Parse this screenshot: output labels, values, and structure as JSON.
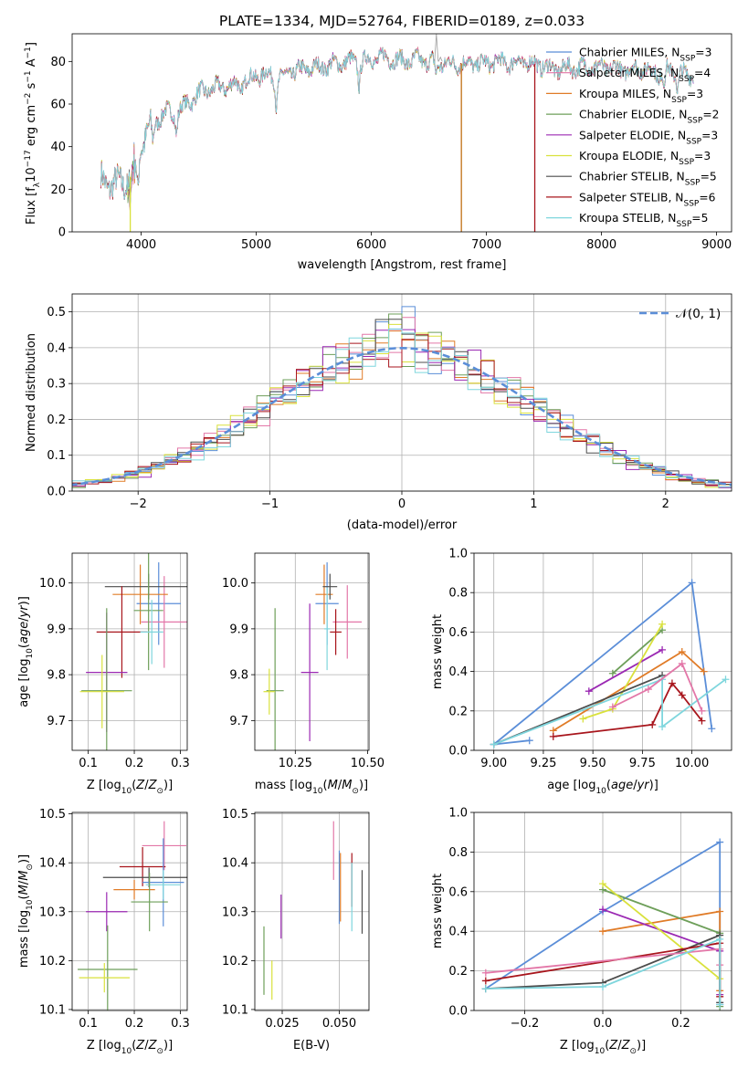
{
  "chart_data": [
    {
      "id": "spectrum",
      "type": "line",
      "title": "PLATE=1334, MJD=52764, FIBERID=0189, z=0.033",
      "xlabel": "wavelength [Angstrom, rest frame]",
      "ylabel": "Flux [f$_\\lambda$10$^{-17}$ erg cm$^{-2}$ s$^{-1}$ A$^{-1}$]",
      "ylabel_parts": {
        "a": "Flux [f",
        "b": "λ",
        "c": "10",
        "d": "−17",
        "e": " erg cm",
        "f": "−2",
        "g": " s",
        "h": "−1",
        "i": " A",
        "j": "−1",
        "k": "]"
      },
      "xlim": [
        3400,
        9130
      ],
      "ylim": [
        0,
        93
      ],
      "xticks": [
        4000,
        5000,
        6000,
        7000,
        8000,
        9000
      ],
      "yticks": [
        0,
        20,
        40,
        60,
        80
      ],
      "grid": false,
      "legend_position": "top-right",
      "series": [
        {
          "name": "Chabrier MILES, N$_{SSP}$=3",
          "base": "Chabrier MILES, N",
          "sub": "SSP",
          "tail": "=3"
        },
        {
          "name": "Salpeter MILES, N$_{SSP}$=4",
          "base": "Salpeter MILES, N",
          "sub": "SSP",
          "tail": "=4"
        },
        {
          "name": "Kroupa MILES, N$_{SSP}$=3",
          "base": "Kroupa MILES, N",
          "sub": "SSP",
          "tail": "=3"
        },
        {
          "name": "Chabrier ELODIE, N$_{SSP}$=2",
          "base": "Chabrier ELODIE, N",
          "sub": "SSP",
          "tail": "=2"
        },
        {
          "name": "Salpeter ELODIE, N$_{SSP}$=3",
          "base": "Salpeter ELODIE, N",
          "sub": "SSP",
          "tail": "=3"
        },
        {
          "name": "Kroupa ELODIE, N$_{SSP}$=3",
          "base": "Kroupa ELODIE, N",
          "sub": "SSP",
          "tail": "=3"
        },
        {
          "name": "Chabrier STELIB, N$_{SSP}$=5",
          "base": "Chabrier STELIB, N",
          "sub": "SSP",
          "tail": "=5"
        },
        {
          "name": "Salpeter STELIB, N$_{SSP}$=6",
          "base": "Salpeter STELIB, N",
          "sub": "SSP",
          "tail": "=6"
        },
        {
          "name": "Kroupa STELIB, N$_{SSP}$=5",
          "base": "Kroupa STELIB, N",
          "sub": "SSP",
          "tail": "=5"
        }
      ],
      "continuum": [
        [
          3650,
          24
        ],
        [
          3800,
          22
        ],
        [
          3900,
          25
        ],
        [
          4000,
          42
        ],
        [
          4100,
          50
        ],
        [
          4200,
          56
        ],
        [
          4300,
          56
        ],
        [
          4400,
          60
        ],
        [
          4500,
          65
        ],
        [
          4600,
          67
        ],
        [
          4700,
          68
        ],
        [
          4800,
          69
        ],
        [
          4900,
          71
        ],
        [
          5000,
          73
        ],
        [
          5100,
          74
        ],
        [
          5200,
          72
        ],
        [
          5300,
          75
        ],
        [
          5400,
          76
        ],
        [
          5500,
          77
        ],
        [
          5600,
          78
        ],
        [
          5700,
          79
        ],
        [
          5800,
          80
        ],
        [
          5900,
          80
        ],
        [
          6000,
          81
        ],
        [
          6100,
          82
        ],
        [
          6200,
          81
        ],
        [
          6300,
          80
        ],
        [
          6400,
          81
        ],
        [
          6500,
          80
        ],
        [
          6600,
          79
        ],
        [
          6700,
          79
        ],
        [
          6800,
          79
        ],
        [
          6900,
          79
        ],
        [
          7000,
          79
        ],
        [
          7100,
          80
        ],
        [
          7200,
          79
        ],
        [
          7300,
          80
        ],
        [
          7400,
          79
        ],
        [
          7500,
          78
        ],
        [
          7600,
          76
        ],
        [
          7700,
          77
        ],
        [
          7800,
          77
        ],
        [
          7900,
          78
        ],
        [
          8000,
          77
        ],
        [
          8100,
          77
        ],
        [
          8200,
          76
        ],
        [
          8300,
          77
        ],
        [
          8400,
          76
        ],
        [
          8500,
          76
        ],
        [
          8600,
          76
        ],
        [
          8700,
          74
        ],
        [
          8800,
          74
        ]
      ],
      "absorption_dips": [
        [
          3934,
          2
        ],
        [
          3969,
          -18
        ],
        [
          4101,
          -8
        ],
        [
          4305,
          -9
        ],
        [
          4861,
          -6
        ],
        [
          5175,
          -13
        ],
        [
          5893,
          -10
        ],
        [
          6563,
          -6
        ],
        [
          8498,
          -6
        ],
        [
          8542,
          -8
        ],
        [
          8662,
          -8
        ]
      ],
      "emission_spikes": [
        [
          6565,
          93
        ],
        [
          6600,
          82
        ]
      ],
      "dropouts": [
        [
          3905,
          0,
          "#d9e13c"
        ],
        [
          6782,
          0,
          "#6e9f5a"
        ],
        [
          6782,
          0,
          "#d17a26"
        ],
        [
          7420,
          0,
          "#a8151c"
        ]
      ]
    },
    {
      "id": "residual-histogram",
      "type": "histogram",
      "xlabel": "(data-model)/error",
      "ylabel": "Normed distribution",
      "xlim": [
        -2.5,
        2.5
      ],
      "ylim": [
        0,
        0.55
      ],
      "xticks": [
        -2,
        -1,
        0,
        1,
        2
      ],
      "yticks": [
        0.0,
        0.1,
        0.2,
        0.3,
        0.4,
        0.5
      ],
      "grid": true,
      "legend_position": "top-right",
      "reference_curve": {
        "name": "$\\mathcal{N}(0,1)$",
        "label": "𝒩(0, 1)",
        "mean": 0,
        "sigma": 1,
        "color": "#5b8ed8"
      },
      "bin_width": 0.1,
      "bin_start": -2.5
    },
    {
      "id": "age-vs-Z",
      "type": "scatter",
      "xlabel": "Z [log$_{10}$(Z/Z$_\\odot$)]",
      "ylabel": "age  [log$_{10}$(age/yr)]",
      "xlim": [
        0.065,
        0.315
      ],
      "ylim": [
        9.635,
        10.065
      ],
      "xticks": [
        0.1,
        0.2,
        0.3
      ],
      "yticks": [
        9.7,
        9.8,
        9.9,
        10.0
      ],
      "grid": true,
      "points": [
        {
          "x": 0.253,
          "y": 9.955,
          "xerr": 0.048,
          "yerr": 0.09,
          "c": "#5b8ed8"
        },
        {
          "x": 0.265,
          "y": 9.915,
          "xerr": 0.05,
          "yerr": 0.1,
          "c": "#e377a8"
        },
        {
          "x": 0.213,
          "y": 9.975,
          "xerr": 0.06,
          "yerr": 0.065,
          "c": "#e07b27"
        },
        {
          "x": 0.231,
          "y": 9.992,
          "xerr": 0.095,
          "yerr": 0.028,
          "c": "#4c4c4c"
        },
        {
          "x": 0.231,
          "y": 9.94,
          "xerr": 0.032,
          "yerr": 0.13,
          "c": "#6e9f5a"
        },
        {
          "x": 0.173,
          "y": 9.893,
          "xerr": 0.055,
          "yerr": 0.1,
          "c": "#a8151c"
        },
        {
          "x": 0.238,
          "y": 9.893,
          "xerr": 0.025,
          "yerr": 0.07,
          "c": "#7fd6dd"
        },
        {
          "x": 0.14,
          "y": 9.805,
          "xerr": 0.045,
          "yerr": 0.13,
          "c": "#9b29b3"
        },
        {
          "x": 0.14,
          "y": 9.765,
          "xerr": 0.055,
          "yerr": 0.18,
          "c": "#6e9f5a"
        },
        {
          "x": 0.13,
          "y": 9.763,
          "xerr": 0.048,
          "yerr": 0.08,
          "c": "#d9e13c"
        }
      ]
    },
    {
      "id": "age-vs-mass",
      "type": "scatter",
      "xlabel": "mass [log$_{10}$(M/M$_\\odot$)]",
      "xlim": [
        10.11,
        10.505
      ],
      "ylim": [
        9.635,
        10.065
      ],
      "xticks": [
        10.25,
        10.5
      ],
      "xticklabels": [
        "10.25",
        "10.50"
      ],
      "yticks": [
        9.7,
        9.8,
        9.9,
        10.0
      ],
      "grid": true,
      "points": [
        {
          "x": 10.36,
          "y": 9.955,
          "xerr": 0.04,
          "yerr": 0.09,
          "c": "#5b8ed8"
        },
        {
          "x": 10.43,
          "y": 9.915,
          "xerr": 0.05,
          "yerr": 0.08,
          "c": "#e377a8"
        },
        {
          "x": 10.35,
          "y": 9.975,
          "xerr": 0.03,
          "yerr": 0.065,
          "c": "#e07b27"
        },
        {
          "x": 10.37,
          "y": 9.992,
          "xerr": 0.025,
          "yerr": 0.028,
          "c": "#4c4c4c"
        },
        {
          "x": 10.39,
          "y": 9.893,
          "xerr": 0.02,
          "yerr": 0.05,
          "c": "#a8151c"
        },
        {
          "x": 10.36,
          "y": 9.9,
          "xerr": 0.01,
          "yerr": 0.09,
          "c": "#7fd6dd"
        },
        {
          "x": 10.3,
          "y": 9.805,
          "xerr": 0.03,
          "yerr": 0.15,
          "c": "#9b29b3"
        },
        {
          "x": 10.18,
          "y": 9.765,
          "xerr": 0.03,
          "yerr": 0.18,
          "c": "#6e9f5a"
        },
        {
          "x": 10.16,
          "y": 9.763,
          "xerr": 0.02,
          "yerr": 0.05,
          "c": "#d9e13c"
        }
      ]
    },
    {
      "id": "mass-weight-vs-age",
      "type": "line",
      "xlabel": "age  [log$_{10}$(age/yr)]",
      "ylabel": "mass weight",
      "xlim": [
        8.9,
        10.2
      ],
      "ylim": [
        0,
        1.0
      ],
      "xticks": [
        9.0,
        9.25,
        9.5,
        9.75,
        10.0
      ],
      "xticklabels": [
        "9.00",
        "9.25",
        "9.50",
        "9.75",
        "10.00"
      ],
      "yticks": [
        0.0,
        0.2,
        0.4,
        0.6,
        0.8,
        1.0
      ],
      "grid": true,
      "series": [
        {
          "c": "#5b8ed8",
          "x": [
            9.18,
            9.0,
            10.0,
            10.1
          ],
          "y": [
            0.05,
            0.03,
            0.85,
            0.11
          ]
        },
        {
          "c": "#e07b27",
          "x": [
            9.3,
            9.95,
            10.06
          ],
          "y": [
            0.1,
            0.5,
            0.4
          ]
        },
        {
          "c": "#6e9f5a",
          "x": [
            9.6,
            9.85
          ],
          "y": [
            0.39,
            0.61
          ]
        },
        {
          "c": "#9b29b3",
          "x": [
            9.48,
            9.85
          ],
          "y": [
            0.3,
            0.51
          ]
        },
        {
          "c": "#d9e13c",
          "x": [
            9.45,
            9.6,
            9.85
          ],
          "y": [
            0.16,
            0.21,
            0.64
          ]
        },
        {
          "c": "#4c4c4c",
          "x": [
            9.0,
            9.85
          ],
          "y": [
            0.03,
            0.38
          ]
        },
        {
          "c": "#a8151c",
          "x": [
            9.3,
            9.8,
            9.9,
            9.95,
            10.05
          ],
          "y": [
            0.07,
            0.13,
            0.34,
            0.28,
            0.15
          ]
        },
        {
          "c": "#7fd6dd",
          "x": [
            9.0,
            9.85,
            9.85,
            10.17
          ],
          "y": [
            0.03,
            0.36,
            0.12,
            0.36
          ]
        },
        {
          "c": "#e377a8",
          "x": [
            9.6,
            9.78,
            9.95,
            10.05
          ],
          "y": [
            0.22,
            0.31,
            0.44,
            0.2
          ]
        }
      ]
    },
    {
      "id": "mass-vs-Z",
      "type": "scatter",
      "xlabel": "Z [log$_{10}$(Z/Z$_\\odot$)]",
      "ylabel": "mass [log$_{10}$(M/M$_\\odot$)]",
      "xlim": [
        0.065,
        0.315
      ],
      "ylim": [
        10.098,
        10.503
      ],
      "xticks": [
        0.1,
        0.2,
        0.3
      ],
      "yticks": [
        10.1,
        10.2,
        10.3,
        10.4,
        10.5
      ],
      "grid": true,
      "points": [
        {
          "x": 0.265,
          "y": 10.435,
          "xerr": 0.048,
          "yerr": 0.05,
          "c": "#e377a8"
        },
        {
          "x": 0.218,
          "y": 10.392,
          "xerr": 0.05,
          "yerr": 0.04,
          "c": "#a8151c"
        },
        {
          "x": 0.232,
          "y": 10.37,
          "xerr": 0.1,
          "yerr": 0.02,
          "c": "#4c4c4c"
        },
        {
          "x": 0.263,
          "y": 10.36,
          "xerr": 0.045,
          "yerr": 0.09,
          "c": "#5b8ed8"
        },
        {
          "x": 0.263,
          "y": 10.355,
          "xerr": 0.038,
          "yerr": 0.03,
          "c": "#7fd6dd"
        },
        {
          "x": 0.2,
          "y": 10.345,
          "xerr": 0.045,
          "yerr": 0.02,
          "c": "#e07b27"
        },
        {
          "x": 0.233,
          "y": 10.32,
          "xerr": 0.04,
          "yerr": 0.06,
          "c": "#6e9f5a"
        },
        {
          "x": 0.14,
          "y": 10.3,
          "xerr": 0.045,
          "yerr": 0.04,
          "c": "#9b29b3"
        },
        {
          "x": 0.142,
          "y": 10.182,
          "xerr": 0.065,
          "yerr": 0.09,
          "c": "#6e9f5a"
        },
        {
          "x": 0.135,
          "y": 10.165,
          "xerr": 0.055,
          "yerr": 0.03,
          "c": "#d9e13c"
        }
      ]
    },
    {
      "id": "mass-vs-EBV",
      "type": "scatter",
      "xlabel": "E(B-V)",
      "xlim": [
        0.013,
        0.063
      ],
      "ylim": [
        10.098,
        10.503
      ],
      "xticks": [
        0.025,
        0.05
      ],
      "xticklabels": [
        "0.025",
        "0.050"
      ],
      "yticks": [
        10.1,
        10.2,
        10.3,
        10.4,
        10.5
      ],
      "grid": true,
      "points": [
        {
          "x": 0.0475,
          "y": 10.425,
          "yerr": 0.06,
          "c": "#e377a8"
        },
        {
          "x": 0.05,
          "y": 10.35,
          "yerr": 0.075,
          "c": "#5b8ed8"
        },
        {
          "x": 0.0505,
          "y": 10.35,
          "yerr": 0.07,
          "c": "#e07b27"
        },
        {
          "x": 0.0555,
          "y": 10.365,
          "yerr": 0.055,
          "c": "#a8151c"
        },
        {
          "x": 0.0555,
          "y": 10.33,
          "yerr": 0.07,
          "c": "#7fd6dd"
        },
        {
          "x": 0.06,
          "y": 10.32,
          "yerr": 0.065,
          "c": "#4c4c4c"
        },
        {
          "x": 0.0245,
          "y": 10.29,
          "yerr": 0.045,
          "c": "#9b29b3"
        },
        {
          "x": 0.017,
          "y": 10.2,
          "yerr": 0.07,
          "c": "#6e9f5a"
        },
        {
          "x": 0.0205,
          "y": 10.16,
          "yerr": 0.04,
          "c": "#d9e13c"
        }
      ]
    },
    {
      "id": "mass-weight-vs-Z",
      "type": "line",
      "xlabel": "Z [log$_{10}$(Z/Z$_\\odot$)]",
      "ylabel": "mass weight",
      "xlim": [
        -0.33,
        0.33
      ],
      "ylim": [
        0,
        1.0
      ],
      "xticks": [
        -0.2,
        0.0,
        0.2
      ],
      "xticklabels": [
        "−0.2",
        "0.0",
        "0.2"
      ],
      "yticks": [
        0.0,
        0.2,
        0.4,
        0.6,
        0.8,
        1.0
      ],
      "grid": true,
      "series": [
        {
          "c": "#5b8ed8",
          "x": [
            -0.3,
            0.0,
            0.3,
            0.3
          ],
          "y": [
            0.11,
            0.5,
            0.85,
            0.03
          ]
        },
        {
          "c": "#e07b27",
          "x": [
            0.0,
            0.3,
            0.3
          ],
          "y": [
            0.4,
            0.5,
            0.1
          ]
        },
        {
          "c": "#6e9f5a",
          "x": [
            0.0,
            0.3,
            0.3
          ],
          "y": [
            0.61,
            0.39,
            0.02
          ]
        },
        {
          "c": "#9b29b3",
          "x": [
            0.0,
            0.3,
            0.3
          ],
          "y": [
            0.51,
            0.3,
            0.08
          ]
        },
        {
          "c": "#d9e13c",
          "x": [
            0.0,
            0.3
          ],
          "y": [
            0.64,
            0.16
          ]
        },
        {
          "c": "#4c4c4c",
          "x": [
            -0.3,
            0.0,
            0.3,
            0.3
          ],
          "y": [
            0.11,
            0.14,
            0.38,
            0.04
          ]
        },
        {
          "c": "#a8151c",
          "x": [
            -0.3,
            0.3,
            0.3
          ],
          "y": [
            0.15,
            0.34,
            0.07
          ]
        },
        {
          "c": "#e377a8",
          "x": [
            -0.3,
            0.3,
            0.3
          ],
          "y": [
            0.19,
            0.31,
            0.23
          ]
        },
        {
          "c": "#7fd6dd",
          "x": [
            -0.3,
            0.0,
            0.3,
            0.3
          ],
          "y": [
            0.11,
            0.12,
            0.36,
            0.03
          ]
        }
      ]
    }
  ]
}
